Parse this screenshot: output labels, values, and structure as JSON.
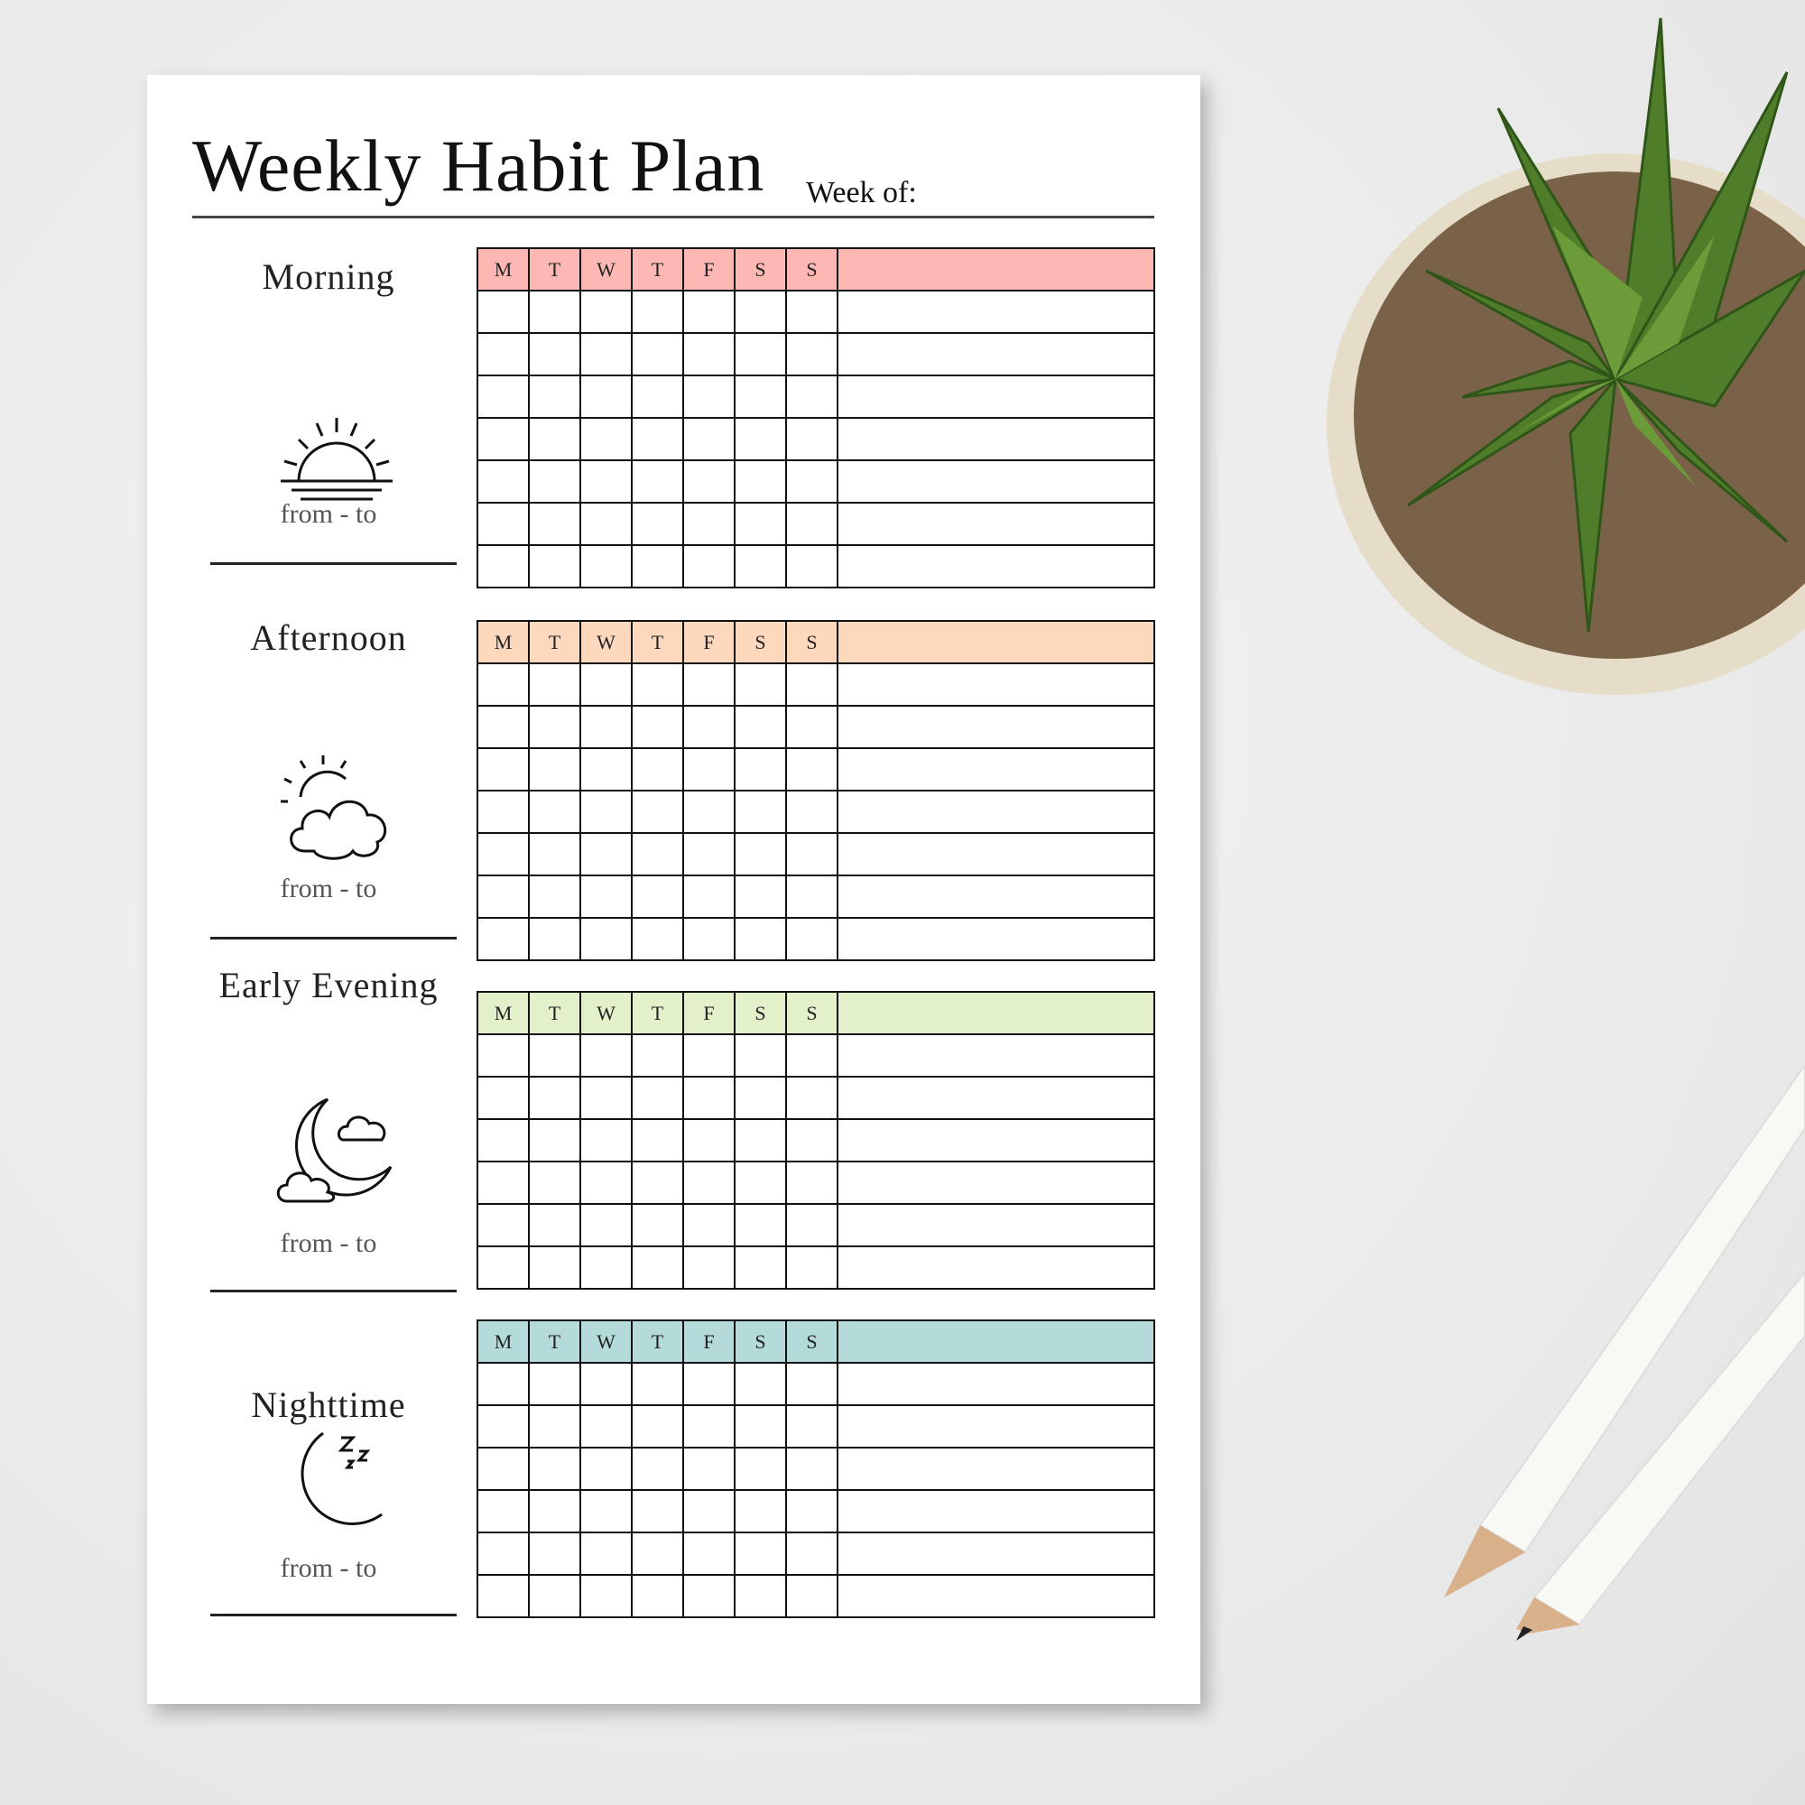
{
  "header": {
    "title": "Weekly Habit Plan",
    "week_of_label": "Week of:"
  },
  "days": [
    "M",
    "T",
    "W",
    "T",
    "F",
    "S",
    "S"
  ],
  "sections": [
    {
      "label": "Morning",
      "icon": "sunrise-icon",
      "time_label": "from - to",
      "header_color": "#fdb8b4",
      "rows": 7
    },
    {
      "label": "Afternoon",
      "icon": "sun-cloud-icon",
      "time_label": "from - to",
      "header_color": "#fdd8bd",
      "rows": 7
    },
    {
      "label": "Early Evening",
      "icon": "moon-clouds-icon",
      "time_label": "from - to",
      "header_color": "#e3f1cb",
      "rows": 6
    },
    {
      "label": "Nighttime",
      "icon": "moon-zzz-icon",
      "time_label": "from - to",
      "header_color": "#b4dbda",
      "rows": 6
    }
  ]
}
